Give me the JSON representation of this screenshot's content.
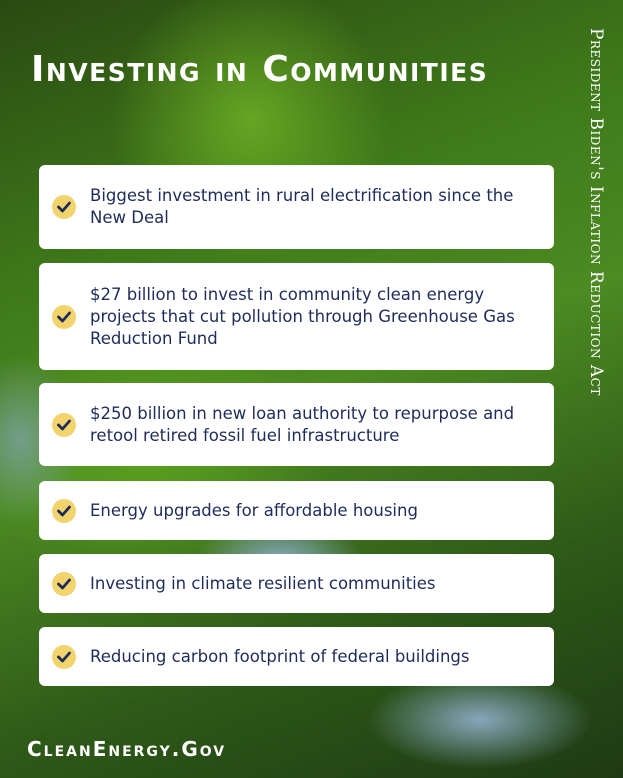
{
  "title": "Investing in Communities",
  "side_title": "President Biden's Inflation Reduction Act",
  "items": [
    {
      "text": "Biggest investment in rural electrification since the New Deal",
      "icon": "check-circle-icon"
    },
    {
      "text": "$27 billion to invest in community clean energy projects that cut pollution through Greenhouse Gas Reduction Fund",
      "icon": "check-circle-icon"
    },
    {
      "text": "$250 billion in new loan authority to repurpose and retool retired fossil fuel infrastructure",
      "icon": "check-circle-icon"
    },
    {
      "text": "Energy upgrades for affordable housing",
      "icon": "check-circle-icon"
    },
    {
      "text": "Investing in climate resilient communities",
      "icon": "check-circle-icon"
    },
    {
      "text": "Reducing carbon footprint of federal buildings",
      "icon": "check-circle-icon"
    }
  ],
  "footer": "CleanEnergy.Gov",
  "colors": {
    "text": "#1e2c5c",
    "check_bg": "#f3d36c",
    "card": "#ffffff"
  }
}
